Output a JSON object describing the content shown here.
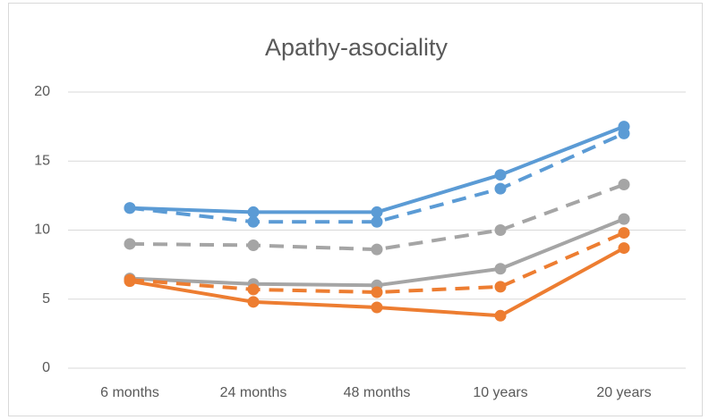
{
  "chart_data": {
    "type": "line",
    "title": "Apathy-asociality",
    "categories": [
      "6 months",
      "24 months",
      "48 months",
      "10 years",
      "20 years"
    ],
    "series": [
      {
        "color": "#5b9bd5",
        "dashed": false,
        "values": [
          11.6,
          11.3,
          11.3,
          14.0,
          17.5
        ]
      },
      {
        "color": "#5b9bd5",
        "dashed": true,
        "values": [
          11.6,
          10.6,
          10.6,
          13.0,
          17.0
        ]
      },
      {
        "color": "#a5a5a5",
        "dashed": true,
        "values": [
          9.0,
          8.9,
          8.6,
          10.0,
          13.3
        ]
      },
      {
        "color": "#a5a5a5",
        "dashed": false,
        "values": [
          6.5,
          6.1,
          6.0,
          7.2,
          10.8
        ]
      },
      {
        "color": "#ed7d31",
        "dashed": true,
        "values": [
          6.4,
          5.7,
          5.5,
          5.9,
          9.8
        ]
      },
      {
        "color": "#ed7d31",
        "dashed": false,
        "values": [
          6.3,
          4.8,
          4.4,
          3.8,
          8.7
        ]
      }
    ],
    "ylim": [
      0,
      20
    ],
    "yticks": [
      0,
      5,
      10,
      15,
      20
    ],
    "grid": true
  }
}
